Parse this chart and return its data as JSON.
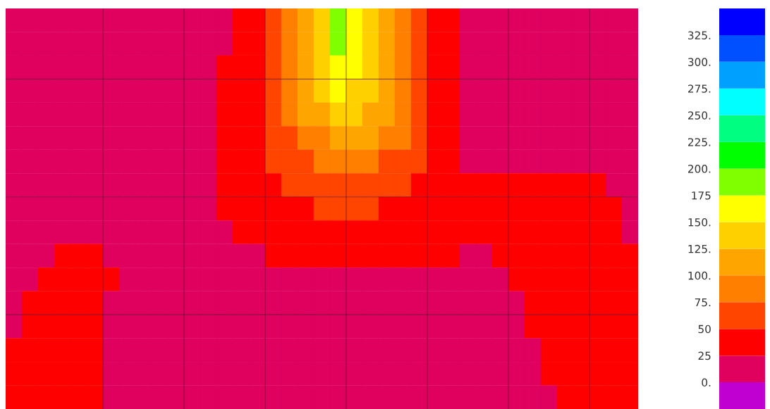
{
  "chart_data": {
    "type": "heatmap",
    "categories": [
      null,
      null,
      null,
      null,
      null,
      null,
      null,
      null,
      null,
      null,
      null,
      null,
      null,
      null,
      null,
      null,
      null,
      null,
      null,
      null,
      null,
      null,
      null,
      null,
      null,
      null,
      null,
      null,
      null,
      null,
      null,
      null,
      null,
      null,
      null,
      null,
      null,
      null,
      null
    ],
    "y_categories": [
      null,
      null,
      null,
      null,
      null,
      null,
      null,
      null,
      null,
      null,
      null,
      null,
      null,
      null,
      null,
      null,
      null
    ],
    "cells": [
      [
        12.5,
        12.5,
        12.5,
        12.5,
        12.5,
        12.5,
        12.5,
        12.5,
        12.5,
        12.5,
        12.5,
        12.5,
        12.5,
        12.5,
        37.5,
        37.5,
        62.5,
        87.5,
        112.5,
        137.5,
        187.5,
        162.5,
        137.5,
        112.5,
        87.5,
        62.5,
        37.5,
        37.5,
        12.5,
        12.5,
        12.5,
        12.5,
        12.5,
        12.5,
        12.5,
        12.5,
        12.5,
        12.5,
        12.5
      ],
      [
        12.5,
        12.5,
        12.5,
        12.5,
        12.5,
        12.5,
        12.5,
        12.5,
        12.5,
        12.5,
        12.5,
        12.5,
        12.5,
        12.5,
        37.5,
        37.5,
        62.5,
        87.5,
        112.5,
        137.5,
        187.5,
        162.5,
        137.5,
        112.5,
        87.5,
        62.5,
        37.5,
        37.5,
        12.5,
        12.5,
        12.5,
        12.5,
        12.5,
        12.5,
        12.5,
        12.5,
        12.5,
        12.5,
        12.5
      ],
      [
        12.5,
        12.5,
        12.5,
        12.5,
        12.5,
        12.5,
        12.5,
        12.5,
        12.5,
        12.5,
        12.5,
        12.5,
        12.5,
        37.5,
        37.5,
        37.5,
        62.5,
        87.5,
        112.5,
        137.5,
        162.5,
        162.5,
        137.5,
        112.5,
        87.5,
        62.5,
        37.5,
        37.5,
        12.5,
        12.5,
        12.5,
        12.5,
        12.5,
        12.5,
        12.5,
        12.5,
        12.5,
        12.5,
        12.5
      ],
      [
        12.5,
        12.5,
        12.5,
        12.5,
        12.5,
        12.5,
        12.5,
        12.5,
        12.5,
        12.5,
        12.5,
        12.5,
        12.5,
        37.5,
        37.5,
        37.5,
        62.5,
        87.5,
        112.5,
        137.5,
        162.5,
        137.5,
        137.5,
        112.5,
        87.5,
        62.5,
        37.5,
        37.5,
        12.5,
        12.5,
        12.5,
        12.5,
        12.5,
        12.5,
        12.5,
        12.5,
        12.5,
        12.5,
        12.5
      ],
      [
        12.5,
        12.5,
        12.5,
        12.5,
        12.5,
        12.5,
        12.5,
        12.5,
        12.5,
        12.5,
        12.5,
        12.5,
        12.5,
        37.5,
        37.5,
        37.5,
        62.5,
        87.5,
        112.5,
        112.5,
        137.5,
        137.5,
        112.5,
        112.5,
        87.5,
        62.5,
        37.5,
        37.5,
        12.5,
        12.5,
        12.5,
        12.5,
        12.5,
        12.5,
        12.5,
        12.5,
        12.5,
        12.5,
        12.5
      ],
      [
        12.5,
        12.5,
        12.5,
        12.5,
        12.5,
        12.5,
        12.5,
        12.5,
        12.5,
        12.5,
        12.5,
        12.5,
        12.5,
        37.5,
        37.5,
        37.5,
        62.5,
        62.5,
        87.5,
        87.5,
        112.5,
        112.5,
        112.5,
        87.5,
        87.5,
        62.5,
        37.5,
        37.5,
        12.5,
        12.5,
        12.5,
        12.5,
        12.5,
        12.5,
        12.5,
        12.5,
        12.5,
        12.5,
        12.5
      ],
      [
        12.5,
        12.5,
        12.5,
        12.5,
        12.5,
        12.5,
        12.5,
        12.5,
        12.5,
        12.5,
        12.5,
        12.5,
        12.5,
        37.5,
        37.5,
        37.5,
        62.5,
        62.5,
        62.5,
        87.5,
        87.5,
        87.5,
        87.5,
        62.5,
        62.5,
        62.5,
        37.5,
        37.5,
        12.5,
        12.5,
        12.5,
        12.5,
        12.5,
        12.5,
        12.5,
        12.5,
        12.5,
        12.5,
        12.5
      ],
      [
        12.5,
        12.5,
        12.5,
        12.5,
        12.5,
        12.5,
        12.5,
        12.5,
        12.5,
        12.5,
        12.5,
        12.5,
        12.5,
        37.5,
        37.5,
        37.5,
        37.5,
        62.5,
        62.5,
        62.5,
        62.5,
        62.5,
        62.5,
        62.5,
        62.5,
        37.5,
        37.5,
        37.5,
        37.5,
        37.5,
        37.5,
        37.5,
        37.5,
        37.5,
        37.5,
        37.5,
        37.5,
        12.5,
        12.5
      ],
      [
        12.5,
        12.5,
        12.5,
        12.5,
        12.5,
        12.5,
        12.5,
        12.5,
        12.5,
        12.5,
        12.5,
        12.5,
        12.5,
        37.5,
        37.5,
        37.5,
        37.5,
        37.5,
        37.5,
        62.5,
        62.5,
        62.5,
        62.5,
        37.5,
        37.5,
        37.5,
        37.5,
        37.5,
        37.5,
        37.5,
        37.5,
        37.5,
        37.5,
        37.5,
        37.5,
        37.5,
        37.5,
        37.5,
        12.5
      ],
      [
        12.5,
        12.5,
        12.5,
        12.5,
        12.5,
        12.5,
        12.5,
        12.5,
        12.5,
        12.5,
        12.5,
        12.5,
        12.5,
        12.5,
        37.5,
        37.5,
        37.5,
        37.5,
        37.5,
        37.5,
        37.5,
        37.5,
        37.5,
        37.5,
        37.5,
        37.5,
        37.5,
        37.5,
        37.5,
        37.5,
        37.5,
        37.5,
        37.5,
        37.5,
        37.5,
        37.5,
        37.5,
        37.5,
        12.5
      ],
      [
        12.5,
        12.5,
        12.5,
        37.5,
        37.5,
        37.5,
        12.5,
        12.5,
        12.5,
        12.5,
        12.5,
        12.5,
        12.5,
        12.5,
        12.5,
        12.5,
        37.5,
        37.5,
        37.5,
        37.5,
        37.5,
        37.5,
        37.5,
        37.5,
        37.5,
        37.5,
        37.5,
        37.5,
        12.5,
        12.5,
        37.5,
        37.5,
        37.5,
        37.5,
        37.5,
        37.5,
        37.5,
        37.5,
        37.5
      ],
      [
        12.5,
        12.5,
        37.5,
        37.5,
        37.5,
        37.5,
        37.5,
        12.5,
        12.5,
        12.5,
        12.5,
        12.5,
        12.5,
        12.5,
        12.5,
        12.5,
        12.5,
        12.5,
        12.5,
        12.5,
        12.5,
        12.5,
        12.5,
        12.5,
        12.5,
        12.5,
        12.5,
        12.5,
        12.5,
        12.5,
        12.5,
        37.5,
        37.5,
        37.5,
        37.5,
        37.5,
        37.5,
        37.5,
        37.5
      ],
      [
        12.5,
        37.5,
        37.5,
        37.5,
        37.5,
        37.5,
        12.5,
        12.5,
        12.5,
        12.5,
        12.5,
        12.5,
        12.5,
        12.5,
        12.5,
        12.5,
        12.5,
        12.5,
        12.5,
        12.5,
        12.5,
        12.5,
        12.5,
        12.5,
        12.5,
        12.5,
        12.5,
        12.5,
        12.5,
        12.5,
        12.5,
        12.5,
        37.5,
        37.5,
        37.5,
        37.5,
        37.5,
        37.5,
        37.5
      ],
      [
        12.5,
        37.5,
        37.5,
        37.5,
        37.5,
        37.5,
        12.5,
        12.5,
        12.5,
        12.5,
        12.5,
        12.5,
        12.5,
        12.5,
        12.5,
        12.5,
        12.5,
        12.5,
        12.5,
        12.5,
        12.5,
        12.5,
        12.5,
        12.5,
        12.5,
        12.5,
        12.5,
        12.5,
        12.5,
        12.5,
        12.5,
        12.5,
        37.5,
        37.5,
        37.5,
        37.5,
        37.5,
        37.5,
        37.5
      ],
      [
        37.5,
        37.5,
        37.5,
        37.5,
        37.5,
        37.5,
        12.5,
        12.5,
        12.5,
        12.5,
        12.5,
        12.5,
        12.5,
        12.5,
        12.5,
        12.5,
        12.5,
        12.5,
        12.5,
        12.5,
        12.5,
        12.5,
        12.5,
        12.5,
        12.5,
        12.5,
        12.5,
        12.5,
        12.5,
        12.5,
        12.5,
        12.5,
        12.5,
        37.5,
        37.5,
        37.5,
        37.5,
        37.5,
        37.5
      ],
      [
        37.5,
        37.5,
        37.5,
        37.5,
        37.5,
        37.5,
        12.5,
        12.5,
        12.5,
        12.5,
        12.5,
        12.5,
        12.5,
        12.5,
        12.5,
        12.5,
        12.5,
        12.5,
        12.5,
        12.5,
        12.5,
        12.5,
        12.5,
        12.5,
        12.5,
        12.5,
        12.5,
        12.5,
        12.5,
        12.5,
        12.5,
        12.5,
        12.5,
        37.5,
        37.5,
        37.5,
        37.5,
        37.5,
        37.5
      ],
      [
        37.5,
        37.5,
        37.5,
        37.5,
        37.5,
        37.5,
        12.5,
        12.5,
        12.5,
        12.5,
        12.5,
        12.5,
        12.5,
        12.5,
        12.5,
        12.5,
        12.5,
        12.5,
        12.5,
        12.5,
        12.5,
        12.5,
        12.5,
        12.5,
        12.5,
        12.5,
        12.5,
        12.5,
        12.5,
        12.5,
        12.5,
        12.5,
        12.5,
        12.5,
        37.5,
        37.5,
        37.5,
        37.5,
        37.5
      ]
    ],
    "clim": [
      -25,
      350
    ],
    "cticks": [
      {
        "value": 0,
        "label": "0."
      },
      {
        "value": 25,
        "label": "25"
      },
      {
        "value": 50,
        "label": "50"
      },
      {
        "value": 75,
        "label": "75."
      },
      {
        "value": 100,
        "label": "100."
      },
      {
        "value": 125,
        "label": "125."
      },
      {
        "value": 150,
        "label": "150."
      },
      {
        "value": 175,
        "label": "175"
      },
      {
        "value": 200,
        "label": "200."
      },
      {
        "value": 225,
        "label": "225."
      },
      {
        "value": 250,
        "label": "250."
      },
      {
        "value": 275,
        "label": "275."
      },
      {
        "value": 300,
        "label": "300."
      },
      {
        "value": 325,
        "label": "325."
      }
    ],
    "grid": true
  }
}
